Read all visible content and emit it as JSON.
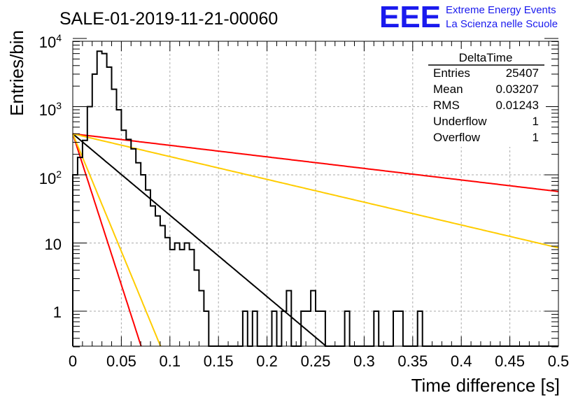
{
  "chart_data": {
    "type": "histogram",
    "title": "SALE-01-2019-11-21-00060",
    "xlabel": "Time difference [s]",
    "ylabel": "Entries/bin",
    "xlim": [
      0,
      0.5
    ],
    "ylim": [
      0.3,
      13000
    ],
    "log_y": true,
    "grid": true,
    "x_ticks": [
      "0",
      "0.05",
      "0.1",
      "0.15",
      "0.2",
      "0.25",
      "0.3",
      "0.35",
      "0.4",
      "0.45",
      "0.5"
    ],
    "y_ticks": [
      {
        "mantissa": "10",
        "exp": "4"
      },
      {
        "mantissa": "10",
        "exp": "3"
      },
      {
        "mantissa": "10",
        "exp": "2"
      },
      {
        "mantissa": "10",
        "exp": ""
      },
      {
        "mantissa": "1",
        "exp": ""
      }
    ],
    "histogram": {
      "bin_width": 0.005,
      "start": 0,
      "counts": [
        100,
        180,
        320,
        1000,
        3000,
        6500,
        6000,
        3800,
        1800,
        900,
        450,
        330,
        240,
        150,
        100,
        60,
        35,
        25,
        18,
        12,
        8,
        10,
        8,
        10,
        8,
        4,
        2,
        1,
        0,
        0,
        0,
        0,
        0,
        0,
        0,
        1,
        0,
        1,
        0,
        0,
        0,
        1,
        0,
        1,
        2,
        0,
        0,
        1,
        1,
        2,
        1,
        1,
        0,
        0,
        0,
        0,
        1,
        0,
        0,
        0,
        0,
        0,
        1,
        0,
        0,
        0,
        1,
        1,
        0,
        0,
        0,
        1,
        0,
        0,
        0,
        0,
        0,
        0,
        0,
        0,
        0,
        0,
        0,
        0,
        0,
        0,
        0,
        0,
        0,
        0,
        0,
        0,
        0,
        0,
        0,
        0,
        0,
        0,
        0,
        0
      ]
    },
    "fits": [
      {
        "color": "#000000",
        "amplitude": 400,
        "slope": -27.5
      },
      {
        "color": "#ff0000",
        "amplitude": 400,
        "slope": -3.9
      },
      {
        "color": "#ffcc00",
        "amplitude": 400,
        "slope": -7.7
      },
      {
        "color": "#ff0000",
        "amplitude": 400,
        "slope": -102
      },
      {
        "color": "#ffcc00",
        "amplitude": 400,
        "slope": -79.4
      }
    ]
  },
  "stats_box": {
    "name": "DeltaTime",
    "rows": [
      {
        "label": "Entries",
        "value": "25407"
      },
      {
        "label": "Mean",
        "value": "0.03207"
      },
      {
        "label": "RMS",
        "value": "0.01243"
      },
      {
        "label": "Underflow",
        "value": "1"
      },
      {
        "label": "Overflow",
        "value": "1"
      }
    ]
  },
  "logo": {
    "text": "EEE",
    "line1": "Extreme Energy Events",
    "line2": "La Scienza nelle Scuole",
    "color": "#1a1aee"
  }
}
